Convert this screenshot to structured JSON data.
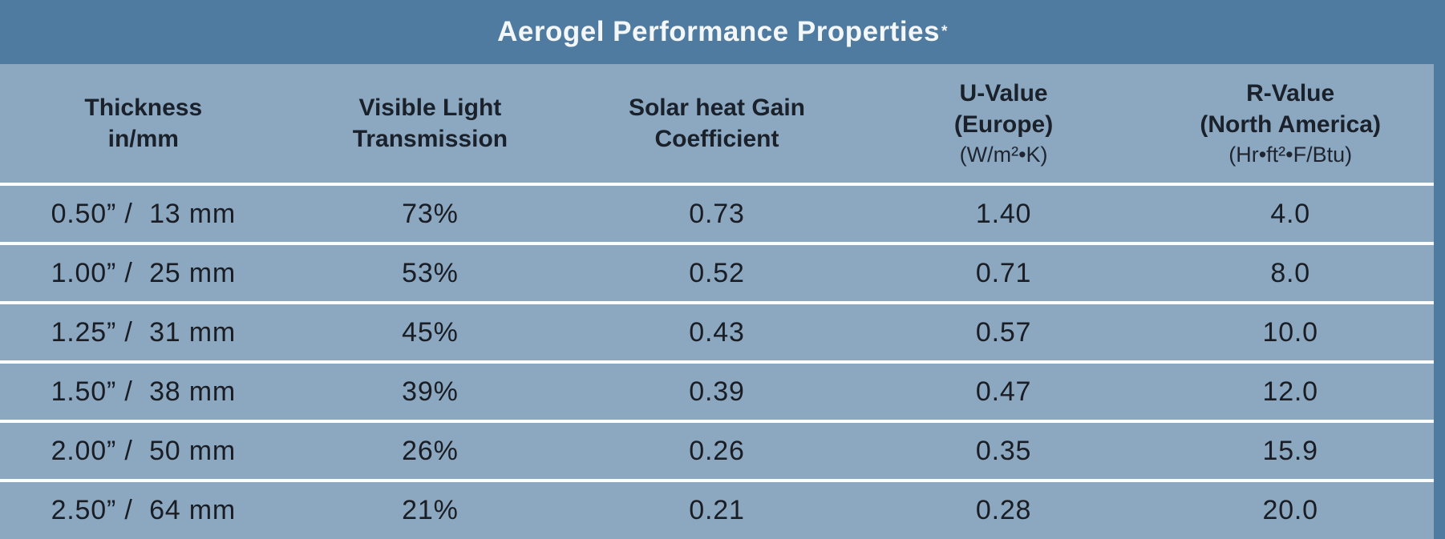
{
  "title": {
    "text": "Aerogel Performance Properties",
    "footnote_marker": "*"
  },
  "colors": {
    "title_bar": "#4F7BA0",
    "body_background": "#8BA8C0",
    "row_divider": "#FCFDFE",
    "header_text": "#1A212B",
    "data_text": "#1A1D24",
    "title_text": "#F4F7F9"
  },
  "table": {
    "columns": [
      {
        "line1": "Thickness",
        "line2": "in/mm",
        "line3": ""
      },
      {
        "line1": "Visible Light",
        "line2": "Transmission",
        "line3": ""
      },
      {
        "line1": "Solar heat Gain",
        "line2": "Coefficient",
        "line3": ""
      },
      {
        "line1": "U-Value",
        "line2": "(Europe)",
        "line3": "(W/m²•K)"
      },
      {
        "line1": "R-Value",
        "line2": "(North America)",
        "line3": "(Hr•ft²•F/Btu)"
      }
    ],
    "rows": [
      [
        "0.50” /  13 mm",
        "73%",
        "0.73",
        "1.40",
        "4.0"
      ],
      [
        "1.00” /  25 mm",
        "53%",
        "0.52",
        "0.71",
        "8.0"
      ],
      [
        "1.25” /  31 mm",
        "45%",
        "0.43",
        "0.57",
        "10.0"
      ],
      [
        "1.50” /  38 mm",
        "39%",
        "0.39",
        "0.47",
        "12.0"
      ],
      [
        "2.00” /  50 mm",
        "26%",
        "0.26",
        "0.35",
        "15.9"
      ],
      [
        "2.50” /  64 mm",
        "21%",
        "0.21",
        "0.28",
        "20.0"
      ]
    ]
  },
  "chart_data": {
    "type": "table",
    "title": "Aerogel Performance Properties*",
    "columns": [
      "Thickness in/mm",
      "Visible Light Transmission",
      "Solar heat Gain Coefficient",
      "U-Value (Europe) (W/m²•K)",
      "R-Value (North America) (Hr•ft²•F/Btu)"
    ],
    "rows": [
      [
        "0.50\" / 13 mm",
        "73%",
        0.73,
        1.4,
        4.0
      ],
      [
        "1.00\" / 25 mm",
        "53%",
        0.52,
        0.71,
        8.0
      ],
      [
        "1.25\" / 31 mm",
        "45%",
        0.43,
        0.57,
        10.0
      ],
      [
        "1.50\" / 38 mm",
        "39%",
        0.39,
        0.47,
        12.0
      ],
      [
        "2.00\" / 50 mm",
        "26%",
        0.26,
        0.35,
        15.9
      ],
      [
        "2.50\" / 64 mm",
        "21%",
        0.21,
        0.28,
        20.0
      ]
    ],
    "layout": {
      "title_position": "top-center",
      "grid": "horizontal-white-dividers",
      "legend": "none"
    }
  }
}
